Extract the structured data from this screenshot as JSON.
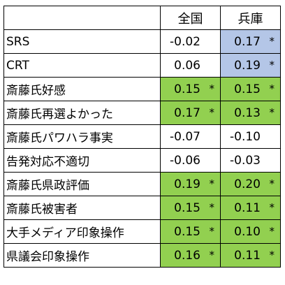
{
  "columns": [
    "全国",
    "兵庫"
  ],
  "colors": {
    "green": "#92d050",
    "blue": "#b4c6e7"
  },
  "rows": [
    {
      "label": "SRS",
      "cells": [
        {
          "value": "-0.02",
          "mark": "",
          "fill": "plain"
        },
        {
          "value": "0.17",
          "mark": "*",
          "fill": "blue"
        }
      ]
    },
    {
      "label": "CRT",
      "cells": [
        {
          "value": "0.06",
          "mark": "",
          "fill": "plain"
        },
        {
          "value": "0.19",
          "mark": "*",
          "fill": "blue"
        }
      ]
    },
    {
      "label": "斎藤氏好感",
      "cells": [
        {
          "value": "0.15",
          "mark": "*",
          "fill": "green"
        },
        {
          "value": "0.15",
          "mark": "*",
          "fill": "green"
        }
      ]
    },
    {
      "label": "斎藤氏再選よかった",
      "cells": [
        {
          "value": "0.17",
          "mark": "*",
          "fill": "green"
        },
        {
          "value": "0.13",
          "mark": "*",
          "fill": "green"
        }
      ]
    },
    {
      "label": "斎藤氏パワハラ事実",
      "cells": [
        {
          "value": "-0.07",
          "mark": "",
          "fill": "plain"
        },
        {
          "value": "-0.10",
          "mark": "",
          "fill": "plain"
        }
      ]
    },
    {
      "label": "告発対応不適切",
      "cells": [
        {
          "value": "-0.06",
          "mark": "",
          "fill": "plain"
        },
        {
          "value": "-0.03",
          "mark": "",
          "fill": "plain"
        }
      ]
    },
    {
      "label": "斎藤氏県政評価",
      "cells": [
        {
          "value": "0.19",
          "mark": "*",
          "fill": "green"
        },
        {
          "value": "0.20",
          "mark": "*",
          "fill": "green"
        }
      ]
    },
    {
      "label": "斎藤氏被害者",
      "cells": [
        {
          "value": "0.15",
          "mark": "*",
          "fill": "green"
        },
        {
          "value": "0.11",
          "mark": "*",
          "fill": "green"
        }
      ]
    },
    {
      "label": "大手メディア印象操作",
      "cells": [
        {
          "value": "0.15",
          "mark": "*",
          "fill": "green"
        },
        {
          "value": "0.10",
          "mark": "*",
          "fill": "green"
        }
      ]
    },
    {
      "label": "県議会印象操作",
      "cells": [
        {
          "value": "0.16",
          "mark": "*",
          "fill": "green"
        },
        {
          "value": "0.11",
          "mark": "*",
          "fill": "green"
        }
      ]
    }
  ]
}
